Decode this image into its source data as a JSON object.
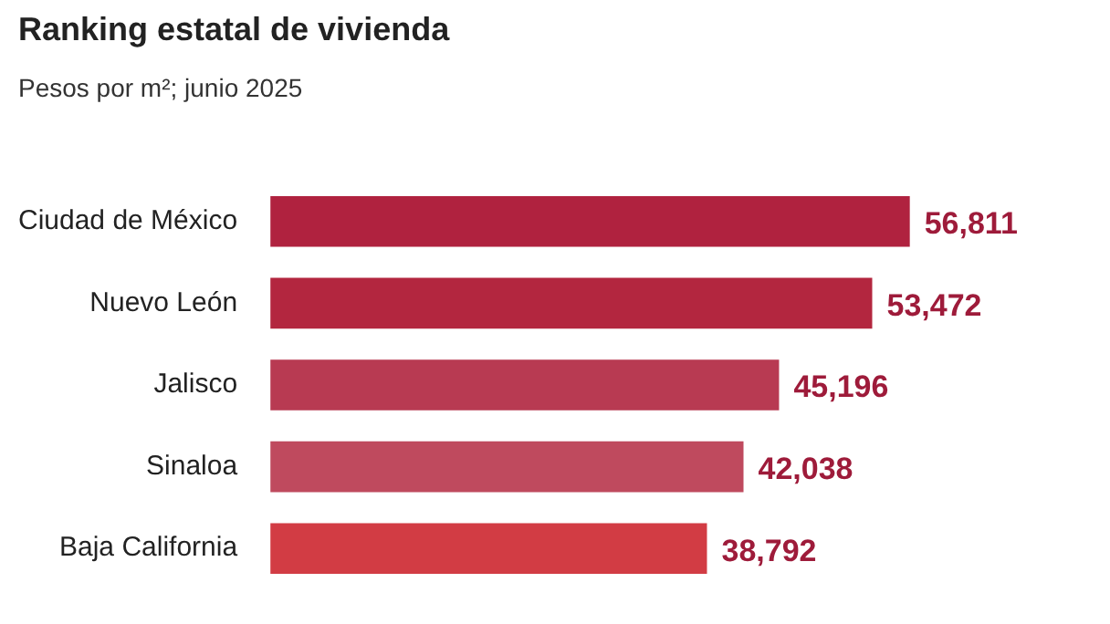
{
  "chart_data": {
    "type": "bar",
    "orientation": "horizontal",
    "title": "Ranking estatal de vivienda",
    "subtitle": "Pesos por m²; junio 2025",
    "categories": [
      "Ciudad de México",
      "Nuevo León",
      "Jalisco",
      "Sinaloa",
      "Baja California"
    ],
    "values": [
      56811,
      53472,
      45196,
      42038,
      38792
    ],
    "colors": [
      "#b0223f",
      "#b3263f",
      "#b83a52",
      "#bf4a5e",
      "#d23c44"
    ],
    "value_labels": [
      "56,811",
      "53,472",
      "45,196",
      "42,038",
      "38,792"
    ]
  }
}
